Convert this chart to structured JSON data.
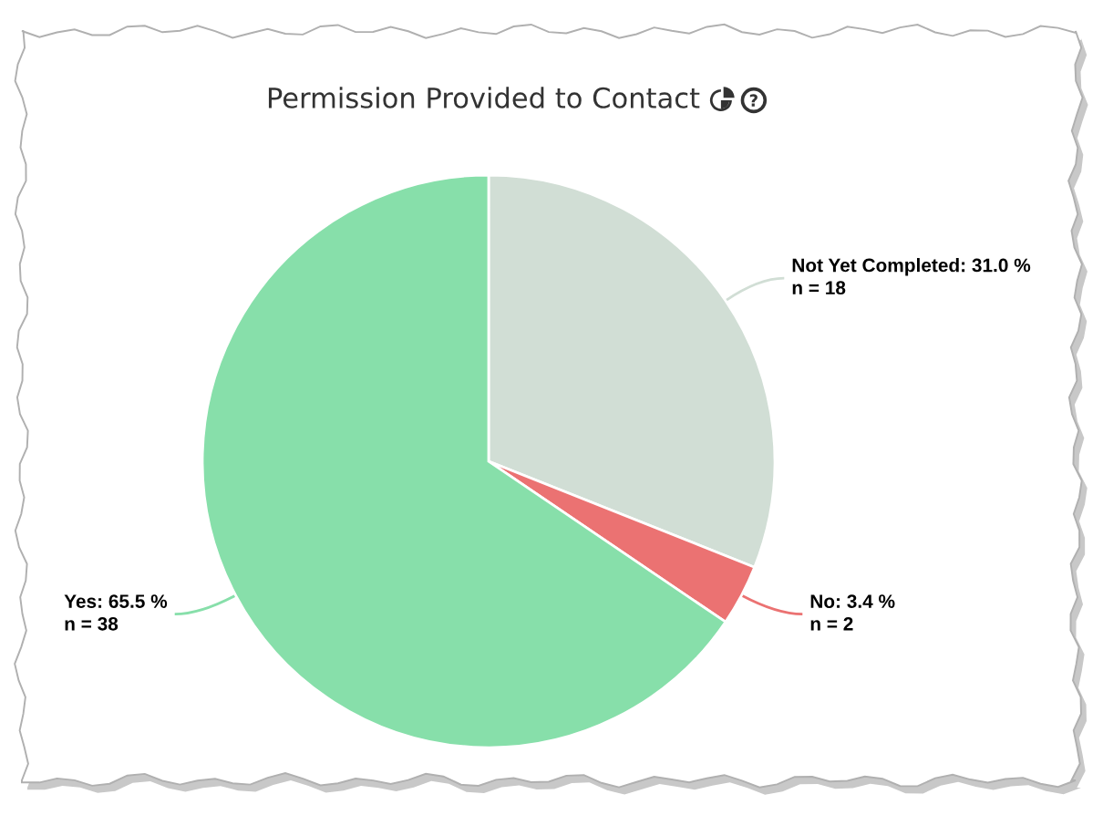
{
  "chart_data": {
    "type": "pie",
    "title": "Permission Provided to Contact",
    "categories": [
      "Not Yet Completed",
      "No",
      "Yes"
    ],
    "values": [
      18,
      2,
      38
    ],
    "colors": [
      "#d1ded5",
      "#eb7272",
      "#87dfaa"
    ],
    "value_labels": [
      "31.0 %\nn = 18",
      "3.4 %\nn = 2",
      "65.5 %\nn = 38"
    ]
  }
}
